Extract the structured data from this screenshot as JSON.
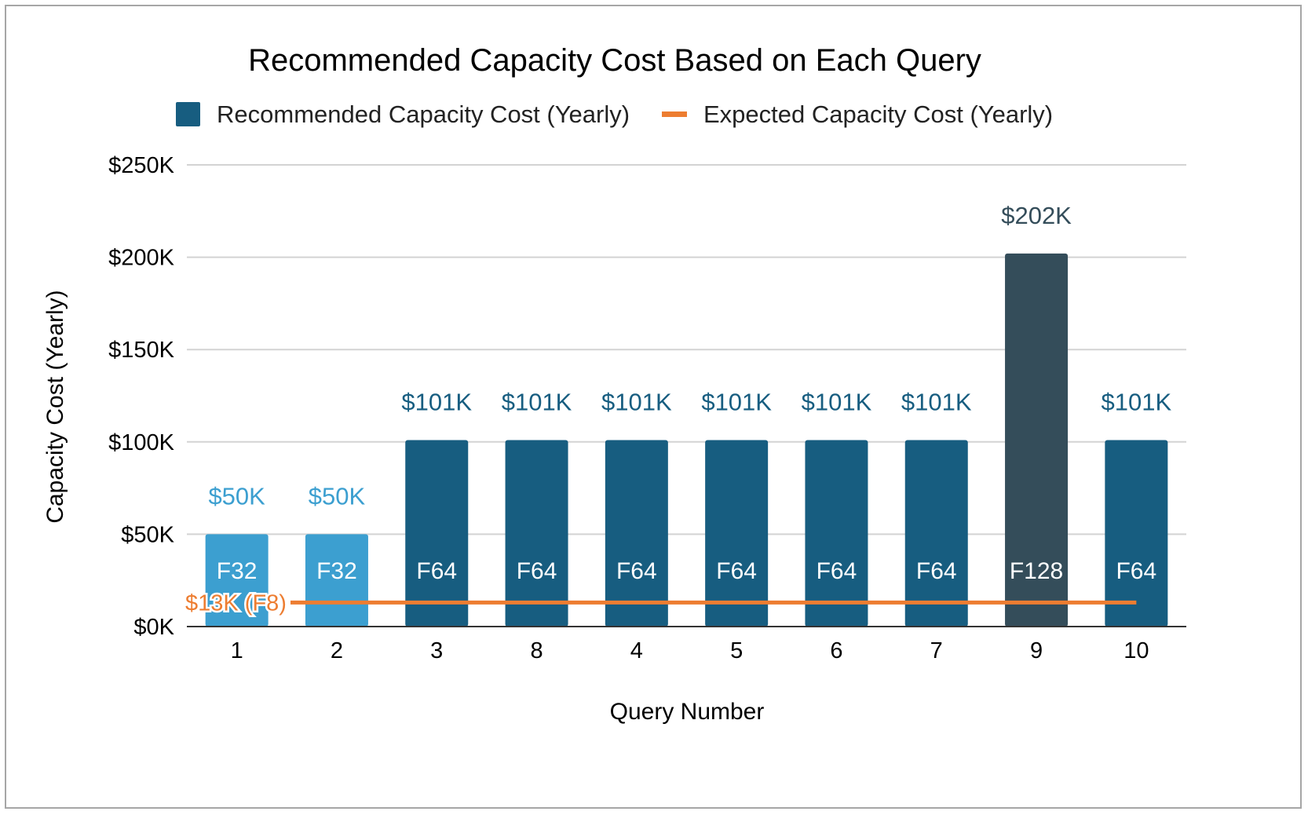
{
  "chart_data": {
    "type": "bar",
    "title": "Recommended Capacity Cost Based on Each Query",
    "xlabel": "Query Number",
    "ylabel": "Capacity Cost (Yearly)",
    "ylim": [
      0,
      250000
    ],
    "yticks": [
      "$0K",
      "$50K",
      "$100K",
      "$150K",
      "$200K",
      "$250K"
    ],
    "ytick_values": [
      0,
      50000,
      100000,
      150000,
      200000,
      250000
    ],
    "categories": [
      "1",
      "2",
      "3",
      "8",
      "4",
      "5",
      "6",
      "7",
      "9",
      "10"
    ],
    "series": [
      {
        "name": "Recommended Capacity Cost (Yearly)",
        "type": "bar",
        "color": "#175d80",
        "values": [
          50000,
          50000,
          101000,
          101000,
          101000,
          101000,
          101000,
          101000,
          202000,
          101000
        ],
        "value_labels": [
          "$50K",
          "$50K",
          "$101K",
          "$101K",
          "$101K",
          "$101K",
          "$101K",
          "$101K",
          "$202K",
          "$101K"
        ],
        "tier_labels": [
          "F32",
          "F32",
          "F64",
          "F64",
          "F64",
          "F64",
          "F64",
          "F64",
          "F128",
          "F64"
        ],
        "bar_colors": [
          "#3c9fd0",
          "#3c9fd0",
          "#175d80",
          "#175d80",
          "#175d80",
          "#175d80",
          "#175d80",
          "#175d80",
          "#344d5a",
          "#175d80"
        ],
        "label_colors": [
          "#3c9fd0",
          "#3c9fd0",
          "#175d80",
          "#175d80",
          "#175d80",
          "#175d80",
          "#175d80",
          "#175d80",
          "#344d5a",
          "#175d80"
        ]
      },
      {
        "name": "Expected Capacity Cost (Yearly)",
        "type": "line",
        "color": "#ed7d31",
        "value": 13000,
        "label": "$13K (F8)"
      }
    ],
    "legend_position": "top",
    "grid": true
  }
}
